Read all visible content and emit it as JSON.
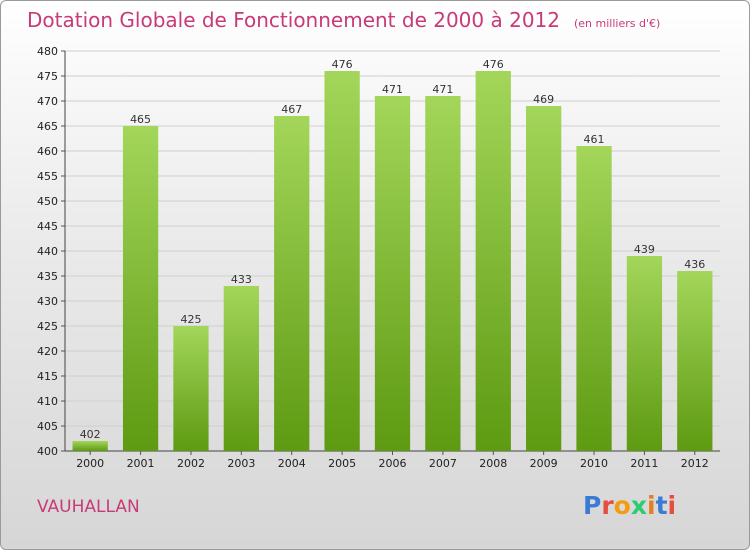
{
  "header": {
    "title": "Dotation Globale de Fonctionnement de 2000 à 2012",
    "unit": "(en milliers d'€)"
  },
  "footer": {
    "commune": "VAUHALLAN",
    "logo_text": "Proxiti",
    "logo_colors": [
      "#3a7bd5",
      "#e74c3c",
      "#f39c12",
      "#2ecc71",
      "#e67e22",
      "#3a7bd5",
      "#e74c3c"
    ]
  },
  "colors": {
    "bar_top": "#a3d65a",
    "bar_bottom": "#5e9a12",
    "text_accent": "#c83a78",
    "grid": "#cfcfcf"
  },
  "chart_data": {
    "type": "bar",
    "categories": [
      "2000",
      "2001",
      "2002",
      "2003",
      "2004",
      "2005",
      "2006",
      "2007",
      "2008",
      "2009",
      "2010",
      "2011",
      "2012"
    ],
    "values": [
      402,
      465,
      425,
      433,
      467,
      476,
      471,
      471,
      476,
      469,
      461,
      439,
      436
    ],
    "value_labels": [
      "402",
      "465",
      "425",
      "433",
      "467",
      "476",
      "471",
      "471",
      "476",
      "469",
      "461",
      "439",
      "436"
    ],
    "yticks": [
      "400",
      "405",
      "410",
      "415",
      "420",
      "425",
      "430",
      "435",
      "440",
      "445",
      "450",
      "455",
      "460",
      "465",
      "470",
      "475",
      "480"
    ],
    "ylim": [
      400,
      480
    ],
    "grid": true,
    "title": "Dotation Globale de Fonctionnement de 2000 à 2012",
    "xlabel": "",
    "ylabel": ""
  }
}
